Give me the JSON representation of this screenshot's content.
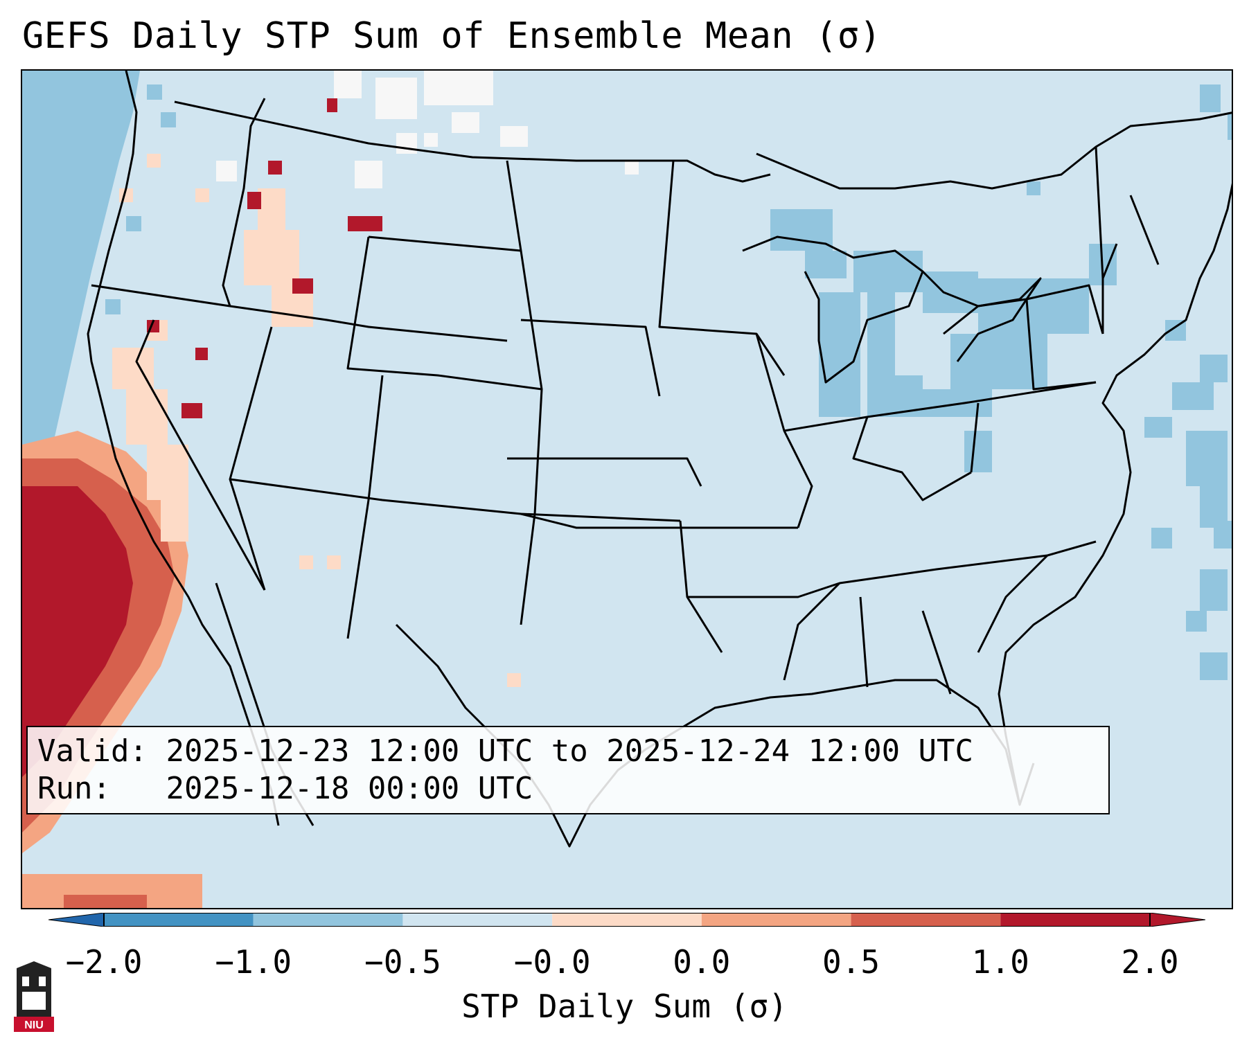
{
  "title": "GEFS Daily STP Sum of Ensemble Mean (σ)",
  "info": {
    "valid_label": "Valid:",
    "valid_text": "2025-12-23 12:00 UTC to 2025-12-24 12:00 UTC",
    "run_label": "Run:",
    "run_text": "2025-12-18 00:00 UTC"
  },
  "colorbar": {
    "label": "STP Daily Sum (σ)",
    "ticks": [
      "−2.0",
      "−1.0",
      "−0.5",
      "−0.0",
      "0.0",
      "0.5",
      "1.0",
      "2.0"
    ],
    "colors": [
      "#4393c3",
      "#92c5de",
      "#d1e5f0",
      "#f7f7f7",
      "#fddbc7",
      "#f4a582",
      "#d6604d",
      "#b2182b"
    ]
  },
  "logo_text": "NIU",
  "map": {
    "background_color": "#d1e5f0",
    "region": "Continental United States",
    "dominant_values": "near 0 over land; positive (red) off California coast; negative (blue) over Pacific NW coast, Great Lakes and Atlantic"
  }
}
